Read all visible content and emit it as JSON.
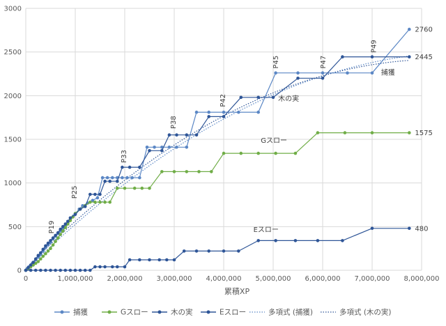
{
  "chart_data": {
    "type": "line",
    "xlabel": "累積XP",
    "ylabel": "",
    "xlim": [
      0,
      8000000
    ],
    "ylim": [
      0,
      3000
    ],
    "grid": true,
    "legend_position": "bottom",
    "x_ticks": [
      "0",
      "1,000,000",
      "2,000,000",
      "3,000,000",
      "4,000,000",
      "5,000,000",
      "6,000,000",
      "7,000,000",
      "8,000,000"
    ],
    "y_ticks": [
      "0",
      "500",
      "1000",
      "1500",
      "2000",
      "2500",
      "3000"
    ],
    "colors": {
      "capture": "#5b87c5",
      "g": "#70ad47",
      "konomi": "#2e5597",
      "e": "#2e5597"
    },
    "series": [
      {
        "name": "捕獲",
        "key": "capture",
        "x": [
          0,
          30000,
          60000,
          100000,
          150000,
          200000,
          250000,
          300000,
          350000,
          400000,
          450000,
          500000,
          550000,
          600000,
          650000,
          700000,
          750000,
          800000,
          850000,
          900000,
          960000,
          1000000,
          1080000,
          1150000,
          1250000,
          1350000,
          1450000,
          1550000,
          1650000,
          1750000,
          1850000,
          1950000,
          2050000,
          2150000,
          2300000,
          2450000,
          2600000,
          2750000,
          2900000,
          3050000,
          3250000,
          3450000,
          3700000,
          4000000,
          4300000,
          4700000,
          5050000,
          5500000,
          6000000,
          6500000,
          7000000,
          7750000
        ],
        "y": [
          0,
          20,
          40,
          60,
          90,
          120,
          150,
          180,
          220,
          260,
          290,
          320,
          360,
          390,
          420,
          450,
          480,
          510,
          540,
          580,
          620,
          650,
          700,
          740,
          770,
          800,
          830,
          1060,
          1060,
          1060,
          1060,
          1060,
          1060,
          1060,
          1060,
          1410,
          1410,
          1410,
          1410,
          1410,
          1410,
          1810,
          1810,
          1810,
          1810,
          1810,
          2260,
          2260,
          2260,
          2260,
          2260,
          2760
        ]
      },
      {
        "name": "Gスロー",
        "key": "g",
        "x": [
          0,
          50000,
          100000,
          150000,
          200000,
          250000,
          300000,
          350000,
          400000,
          450000,
          500000,
          550000,
          600000,
          650000,
          700000,
          750000,
          800000,
          850000,
          900000,
          950000,
          1000000,
          1100000,
          1200000,
          1300000,
          1400000,
          1500000,
          1600000,
          1700000,
          1850000,
          2000000,
          2200000,
          2350000,
          2500000,
          2750000,
          3000000,
          3250000,
          3500000,
          3750000,
          4000000,
          4350000,
          4700000,
          5050000,
          5450000,
          5900000,
          6450000,
          7000000,
          7750000
        ],
        "y": [
          0,
          20,
          40,
          60,
          80,
          100,
          130,
          160,
          190,
          220,
          250,
          290,
          330,
          370,
          410,
          450,
          490,
          530,
          570,
          610,
          650,
          700,
          740,
          780,
          780,
          780,
          780,
          780,
          940,
          940,
          940,
          940,
          940,
          1130,
          1130,
          1130,
          1130,
          1130,
          1340,
          1340,
          1340,
          1340,
          1340,
          1575,
          1575,
          1575,
          1575
        ]
      },
      {
        "name": "木の実",
        "key": "konomi",
        "x": [
          0,
          50000,
          100000,
          150000,
          200000,
          250000,
          300000,
          350000,
          400000,
          450000,
          500000,
          550000,
          600000,
          650000,
          700000,
          750000,
          800000,
          850000,
          900000,
          1000000,
          1100000,
          1200000,
          1300000,
          1400000,
          1500000,
          1600000,
          1700000,
          1850000,
          1950000,
          2100000,
          2300000,
          2500000,
          2750000,
          2900000,
          3050000,
          3250000,
          3450000,
          3700000,
          4000000,
          4350000,
          4700000,
          5000000,
          5500000,
          6000000,
          6400000,
          7000000,
          7750000
        ],
        "y": [
          0,
          30,
          60,
          90,
          130,
          170,
          200,
          240,
          280,
          310,
          340,
          370,
          400,
          430,
          470,
          500,
          530,
          560,
          600,
          640,
          700,
          730,
          870,
          870,
          870,
          1020,
          1020,
          1020,
          1180,
          1180,
          1180,
          1370,
          1370,
          1550,
          1550,
          1550,
          1550,
          1760,
          1760,
          1980,
          1980,
          1980,
          2200,
          2200,
          2445,
          2445,
          2445
        ]
      },
      {
        "name": "Eスロー",
        "key": "e",
        "x": [
          0,
          100000,
          200000,
          300000,
          400000,
          500000,
          600000,
          700000,
          800000,
          900000,
          1000000,
          1100000,
          1200000,
          1300000,
          1400000,
          1500000,
          1600000,
          1750000,
          1850000,
          2000000,
          2100000,
          2300000,
          2500000,
          2700000,
          2850000,
          3000000,
          3200000,
          3450000,
          3700000,
          4000000,
          4300000,
          4700000,
          5050000,
          5450000,
          5900000,
          6400000,
          7000000,
          7750000
        ],
        "y": [
          0,
          0,
          0,
          0,
          0,
          0,
          0,
          0,
          0,
          0,
          0,
          0,
          0,
          0,
          40,
          40,
          40,
          40,
          40,
          40,
          120,
          120,
          120,
          120,
          120,
          120,
          220,
          220,
          220,
          220,
          220,
          340,
          340,
          340,
          340,
          340,
          480,
          480
        ]
      }
    ],
    "trendlines": [
      {
        "name": "多項式 (捕獲)",
        "key": "capture",
        "coeffs": [
          0,
          0.000557,
          -3.1e-11
        ]
      },
      {
        "name": "多項式 (木の実)",
        "key": "konomi",
        "coeffs": [
          20,
          0.000575,
          -3.45e-11
        ]
      }
    ],
    "annotations": [
      {
        "text": "P19",
        "x": 560000,
        "y": 420
      },
      {
        "text": "P25",
        "x": 1030000,
        "y": 820
      },
      {
        "text": "P33",
        "x": 2030000,
        "y": 1230
      },
      {
        "text": "P38",
        "x": 3030000,
        "y": 1620
      },
      {
        "text": "P42",
        "x": 4030000,
        "y": 1870
      },
      {
        "text": "P45",
        "x": 5100000,
        "y": 2310
      },
      {
        "text": "P47",
        "x": 6060000,
        "y": 2310
      },
      {
        "text": "P49",
        "x": 7080000,
        "y": 2490
      }
    ],
    "series_labels": [
      {
        "text": "捕獲",
        "x": 7180000,
        "y": 2240
      },
      {
        "text": "木の実",
        "x": 5100000,
        "y": 1940
      },
      {
        "text": "Gスロー",
        "x": 4750000,
        "y": 1460
      },
      {
        "text": "Eスロー",
        "x": 4600000,
        "y": 440
      }
    ],
    "end_labels": [
      {
        "text": "2760",
        "x": 7780000,
        "y": 2760
      },
      {
        "text": "2445",
        "x": 7780000,
        "y": 2445
      },
      {
        "text": "1575",
        "x": 7780000,
        "y": 1575
      },
      {
        "text": "480",
        "x": 7780000,
        "y": 480
      }
    ]
  }
}
